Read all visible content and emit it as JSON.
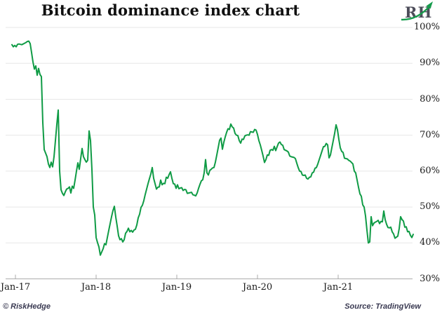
{
  "header": {
    "title": "Bitcoin dominance index chart",
    "logo_text": "RH"
  },
  "footer": {
    "left": "© RiskHedge",
    "right": "Source: TradingView"
  },
  "chart_data": {
    "type": "line",
    "title": "Bitcoin dominance index chart",
    "series_name": "Bitcoin dominance (%)",
    "line_color": "#0f9b45",
    "grid": "horizontal",
    "legend_position": "none",
    "ylim": [
      30,
      100
    ],
    "y_tick_values": [
      100,
      90,
      80,
      70,
      60,
      50,
      40,
      30
    ],
    "y_tick_labels": [
      "100%",
      "90%",
      "80%",
      "70%",
      "60%",
      "50%",
      "40%",
      "30%"
    ],
    "x_tick_labels": [
      "Jan-17",
      "Jan-18",
      "Jan-19",
      "Jan-20",
      "Jan-21"
    ],
    "x_tick_years": [
      2017,
      2018,
      2019,
      2020,
      2021
    ],
    "x_start_years_from_jan17": -0.0435,
    "x_step_years": 0.0174,
    "values": [
      95.2,
      94.6,
      95.0,
      94.6,
      95.3,
      95.4,
      95.3,
      95.2,
      95.4,
      95.6,
      95.8,
      96.1,
      96.2,
      95.5,
      93.0,
      90.4,
      88.4,
      89.3,
      86.7,
      88.6,
      86.9,
      86.3,
      73.5,
      66.0,
      65.0,
      64.0,
      62.0,
      61.0,
      62.5,
      61.2,
      64.0,
      68.5,
      73.0,
      77.0,
      60.0,
      54.8,
      53.8,
      53.2,
      54.2,
      55.0,
      55.2,
      55.6,
      53.9,
      55.8,
      55.2,
      57.5,
      60.0,
      62.3,
      60.5,
      63.5,
      66.3,
      64.0,
      63.2,
      62.5,
      63.0,
      71.2,
      68.5,
      60.5,
      50.0,
      47.8,
      41.5,
      40.1,
      38.9,
      36.6,
      37.5,
      38.4,
      39.8,
      39.5,
      41.5,
      43.5,
      45.4,
      47.3,
      49.0,
      50.2,
      47.2,
      44.7,
      42.0,
      40.9,
      41.2,
      40.3,
      40.9,
      42.7,
      43.2,
      44.1,
      43.1,
      43.5,
      43.0,
      43.6,
      43.8,
      45.0,
      47.0,
      48.0,
      49.9,
      50.5,
      51.8,
      53.5,
      55.0,
      56.5,
      57.9,
      59.2,
      61.0,
      58.0,
      56.5,
      55.0,
      55.5,
      55.6,
      57.5,
      56.2,
      56.6,
      56.5,
      58.3,
      58.0,
      59.0,
      59.8,
      58.0,
      56.5,
      56.4,
      55.2,
      56.2,
      55.1,
      55.3,
      55.4,
      54.6,
      54.9,
      54.8,
      53.8,
      53.9,
      54.0,
      54.1,
      53.4,
      53.3,
      53.1,
      53.9,
      55.2,
      56.3,
      57.3,
      57.6,
      59.5,
      63.2,
      59.5,
      58.9,
      60.2,
      60.5,
      60.9,
      61.0,
      62.5,
      64.5,
      66.5,
      68.6,
      69.2,
      66.1,
      68.0,
      69.5,
      70.8,
      71.8,
      71.6,
      73.1,
      72.3,
      72.0,
      70.5,
      70.0,
      69.9,
      68.5,
      67.8,
      68.9,
      68.8,
      69.8,
      70.0,
      70.1,
      70.0,
      71.0,
      70.9,
      70.8,
      71.6,
      71.4,
      70.2,
      68.5,
      67.3,
      65.8,
      64.2,
      62.4,
      63.2,
      64.5,
      64.4,
      65.8,
      66.0,
      65.8,
      66.9,
      65.7,
      66.8,
      67.8,
      68.1,
      67.4,
      67.2,
      66.0,
      65.8,
      65.6,
      65.3,
      64.2,
      64.0,
      63.9,
      63.8,
      63.5,
      62.2,
      61.0,
      60.0,
      59.9,
      58.9,
      58.8,
      58.9,
      58.0,
      57.8,
      58.3,
      58.4,
      59.5,
      59.7,
      60.8,
      61.0,
      62.0,
      63.2,
      64.4,
      65.6,
      66.8,
      66.9,
      67.7,
      67.3,
      63.7,
      64.5,
      66.5,
      68.5,
      70.5,
      72.9,
      71.5,
      68.8,
      66.5,
      65.5,
      65.2,
      63.6,
      63.5,
      63.4,
      63.0,
      62.8,
      62.4,
      62.0,
      60.0,
      59.5,
      57.5,
      55.5,
      53.7,
      53.0,
      50.6,
      50.0,
      47.5,
      43.6,
      40.0,
      40.3,
      47.3,
      44.8,
      45.5,
      45.8,
      46.0,
      46.3,
      45.4,
      46.0,
      45.9,
      48.9,
      46.5,
      45.2,
      44.3,
      44.2,
      44.4,
      43.1,
      42.5,
      41.3,
      41.6,
      41.9,
      44.0,
      47.3,
      46.5,
      46.1,
      44.4,
      44.5,
      43.1,
      43.2,
      42.1,
      41.5,
      42.4
    ]
  }
}
